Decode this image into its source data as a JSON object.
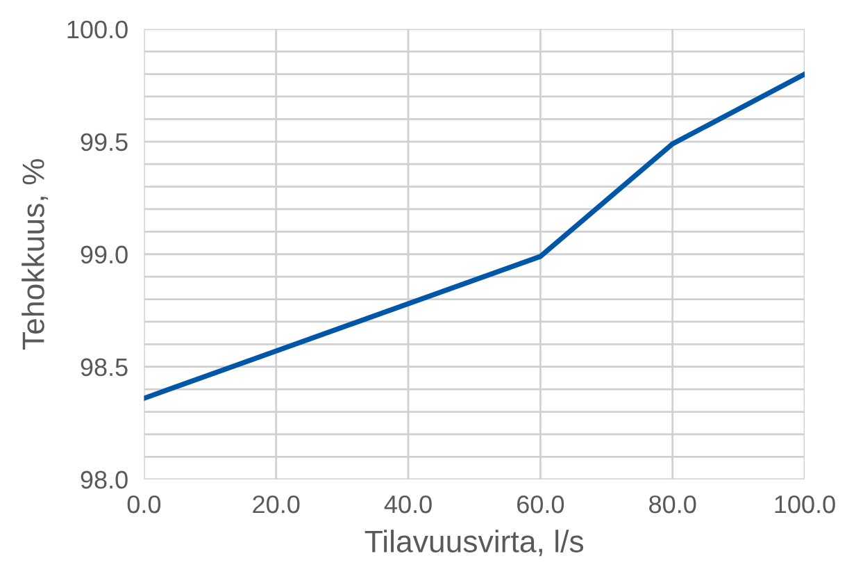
{
  "chart_data": {
    "type": "line",
    "xlabel": "Tilavuusvirta, l/s",
    "ylabel": "Tehokkuus, %",
    "x": [
      0,
      60,
      80,
      100
    ],
    "series": [
      {
        "color": "#0057a8",
        "values": [
          98.36,
          98.99,
          99.49,
          99.8
        ]
      }
    ],
    "xlim": [
      0,
      100
    ],
    "xticks": [
      {
        "value": 0,
        "label": "0.0"
      },
      {
        "value": 20,
        "label": "20.0"
      },
      {
        "value": 40,
        "label": "40.0"
      },
      {
        "value": 60,
        "label": "60.0"
      },
      {
        "value": 80,
        "label": "80.0"
      },
      {
        "value": 100,
        "label": "100.0"
      }
    ],
    "ylim": [
      98,
      100
    ],
    "yticks": [
      {
        "value": 98,
        "label": "98.0"
      },
      {
        "value": 98.1,
        "label": null
      },
      {
        "value": 98.2,
        "label": null
      },
      {
        "value": 98.3,
        "label": null
      },
      {
        "value": 98.4,
        "label": null
      },
      {
        "value": 98.5,
        "label": "98.5"
      },
      {
        "value": 98.6,
        "label": null
      },
      {
        "value": 98.7,
        "label": null
      },
      {
        "value": 98.8,
        "label": null
      },
      {
        "value": 98.9,
        "label": null
      },
      {
        "value": 99,
        "label": "99.0"
      },
      {
        "value": 99.1,
        "label": null
      },
      {
        "value": 99.2,
        "label": null
      },
      {
        "value": 99.3,
        "label": null
      },
      {
        "value": 99.4,
        "label": null
      },
      {
        "value": 99.5,
        "label": "99.5"
      },
      {
        "value": 99.6,
        "label": null
      },
      {
        "value": 99.7,
        "label": null
      },
      {
        "value": 99.8,
        "label": null
      },
      {
        "value": 99.9,
        "label": null
      },
      {
        "value": 100,
        "label": "100.0"
      }
    ],
    "grid": true,
    "marker": "none",
    "line_style": "solid",
    "legend": false
  }
}
